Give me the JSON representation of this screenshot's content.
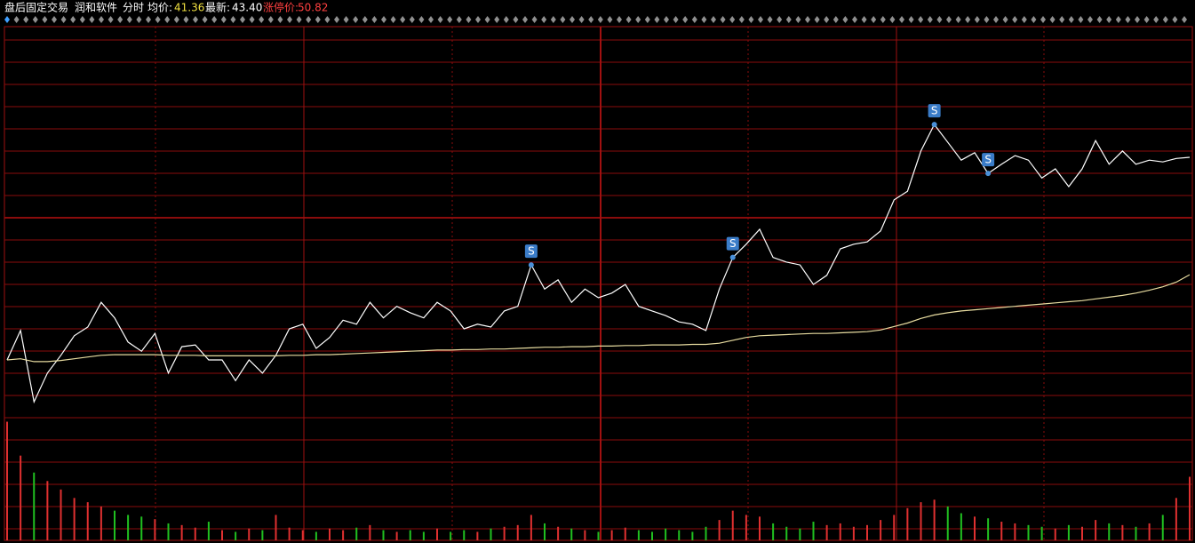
{
  "header": {
    "title": "盘后固定交易",
    "stock": "润和软件",
    "period": "分时",
    "avg_label": "均价:",
    "avg": "41.36",
    "latest_label": "最新:",
    "latest": "43.40",
    "limit_label": "涨停价:",
    "limit": "50.82"
  },
  "chart_data": [
    {
      "type": "line",
      "ylim": [
        39.03,
        45.67
      ],
      "grid": true,
      "series": [
        {
          "color": "#ffffff",
          "values": [
            39.88,
            40.39,
            39.15,
            39.65,
            39.96,
            40.3,
            40.45,
            40.88,
            40.61,
            40.19,
            40.03,
            40.34,
            39.65,
            40.11,
            40.14,
            39.88,
            39.88,
            39.52,
            39.88,
            39.65,
            39.96,
            40.42,
            40.5,
            40.08,
            40.27,
            40.57,
            40.5,
            40.88,
            40.61,
            40.81,
            40.7,
            40.61,
            40.88,
            40.73,
            40.42,
            40.5,
            40.45,
            40.73,
            40.81,
            41.53,
            41.11,
            41.27,
            40.88,
            41.11,
            40.96,
            41.04,
            41.19,
            40.81,
            40.73,
            40.65,
            40.54,
            40.5,
            40.39,
            41.11,
            41.66,
            41.89,
            42.15,
            41.66,
            41.58,
            41.53,
            41.19,
            41.35,
            41.81,
            41.89,
            41.93,
            42.12,
            42.66,
            42.81,
            43.51,
            43.97,
            43.66,
            43.35,
            43.48,
            43.12,
            43.28,
            43.43,
            43.35,
            43.04,
            43.2,
            42.89,
            43.2,
            43.69,
            43.28,
            43.51,
            43.28,
            43.35,
            43.32,
            43.38,
            43.4
          ]
        },
        {
          "color": "#e8dca0",
          "values": [
            39.88,
            39.9,
            39.85,
            39.85,
            39.87,
            39.9,
            39.93,
            39.96,
            39.97,
            39.97,
            39.97,
            39.97,
            39.96,
            39.96,
            39.96,
            39.95,
            39.95,
            39.95,
            39.95,
            39.95,
            39.95,
            39.96,
            39.96,
            39.97,
            39.97,
            39.98,
            39.99,
            40.0,
            40.01,
            40.02,
            40.03,
            40.04,
            40.05,
            40.05,
            40.06,
            40.06,
            40.07,
            40.07,
            40.08,
            40.09,
            40.1,
            40.1,
            40.11,
            40.11,
            40.12,
            40.12,
            40.13,
            40.13,
            40.14,
            40.14,
            40.14,
            40.15,
            40.15,
            40.17,
            40.22,
            40.27,
            40.3,
            40.31,
            40.32,
            40.33,
            40.34,
            40.34,
            40.35,
            40.36,
            40.37,
            40.4,
            40.46,
            40.52,
            40.6,
            40.66,
            40.7,
            40.73,
            40.75,
            40.77,
            40.79,
            40.81,
            40.83,
            40.85,
            40.87,
            40.89,
            40.91,
            40.94,
            40.97,
            41.0,
            41.04,
            41.09,
            41.15,
            41.23,
            41.36
          ]
        }
      ],
      "annotations": [
        {
          "text": "S",
          "at": 39
        },
        {
          "text": "S",
          "at": 54
        },
        {
          "text": "S",
          "at": 69
        },
        {
          "text": "S",
          "at": 73
        }
      ]
    },
    {
      "type": "bar",
      "ylim": [
        0,
        150
      ],
      "up_color": "#e03030",
      "down_color": "#20c020",
      "values": [
        140,
        100,
        80,
        70,
        60,
        50,
        45,
        40,
        35,
        30,
        28,
        25,
        20,
        18,
        15,
        22,
        12,
        10,
        14,
        12,
        30,
        15,
        12,
        10,
        14,
        12,
        15,
        18,
        12,
        10,
        12,
        10,
        14,
        10,
        12,
        10,
        14,
        16,
        18,
        30,
        20,
        16,
        14,
        12,
        10,
        12,
        15,
        12,
        10,
        14,
        12,
        10,
        16,
        24,
        35,
        30,
        28,
        20,
        16,
        14,
        22,
        18,
        20,
        16,
        18,
        24,
        30,
        38,
        45,
        48,
        40,
        32,
        28,
        26,
        22,
        20,
        18,
        16,
        14,
        18,
        16,
        24,
        20,
        18,
        16,
        20,
        30,
        50,
        75
      ]
    }
  ]
}
